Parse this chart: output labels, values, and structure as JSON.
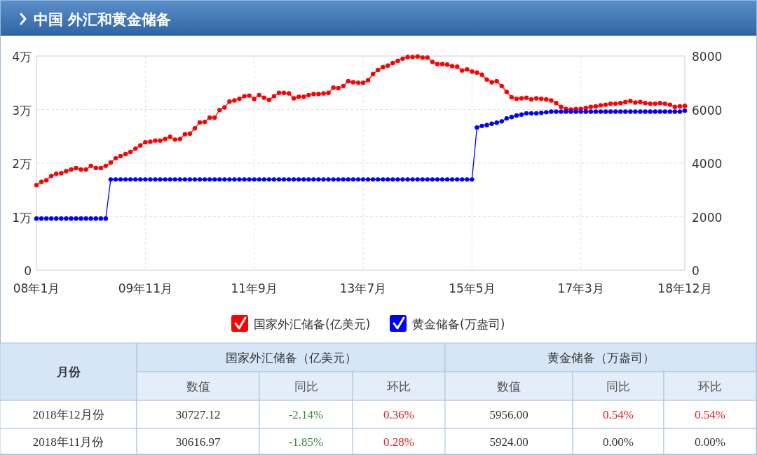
{
  "chart_data": [
    {
      "type": "line",
      "title": "中国 外汇和黄金储备",
      "x": [
        "2008-01",
        "2008-02",
        "2008-03",
        "2008-04",
        "2008-05",
        "2008-06",
        "2008-07",
        "2008-08",
        "2008-09",
        "2008-10",
        "2008-11",
        "2008-12",
        "2009-01",
        "2009-02",
        "2009-03",
        "2009-04",
        "2009-05",
        "2009-06",
        "2009-07",
        "2009-08",
        "2009-09",
        "2009-10",
        "2009-11",
        "2009-12",
        "2010-01",
        "2010-02",
        "2010-03",
        "2010-04",
        "2010-05",
        "2010-06",
        "2010-07",
        "2010-08",
        "2010-09",
        "2010-10",
        "2010-11",
        "2010-12",
        "2011-01",
        "2011-02",
        "2011-03",
        "2011-04",
        "2011-05",
        "2011-06",
        "2011-07",
        "2011-08",
        "2011-09",
        "2011-10",
        "2011-11",
        "2011-12",
        "2012-01",
        "2012-02",
        "2012-03",
        "2012-04",
        "2012-05",
        "2012-06",
        "2012-07",
        "2012-08",
        "2012-09",
        "2012-10",
        "2012-11",
        "2012-12",
        "2013-01",
        "2013-02",
        "2013-03",
        "2013-04",
        "2013-05",
        "2013-06",
        "2013-07",
        "2013-08",
        "2013-09",
        "2013-10",
        "2013-11",
        "2013-12",
        "2014-01",
        "2014-02",
        "2014-03",
        "2014-04",
        "2014-05",
        "2014-06",
        "2014-07",
        "2014-08",
        "2014-09",
        "2014-10",
        "2014-11",
        "2014-12",
        "2015-01",
        "2015-02",
        "2015-03",
        "2015-04",
        "2015-05",
        "2015-06",
        "2015-07",
        "2015-08",
        "2015-09",
        "2015-10",
        "2015-11",
        "2015-12",
        "2016-01",
        "2016-02",
        "2016-03",
        "2016-04",
        "2016-05",
        "2016-06",
        "2016-07",
        "2016-08",
        "2016-09",
        "2016-10",
        "2016-11",
        "2016-12",
        "2017-01",
        "2017-02",
        "2017-03",
        "2017-04",
        "2017-05",
        "2017-06",
        "2017-07",
        "2017-08",
        "2017-09",
        "2017-10",
        "2017-11",
        "2017-12",
        "2018-01",
        "2018-02",
        "2018-03",
        "2018-04",
        "2018-05",
        "2018-06",
        "2018-07",
        "2018-08",
        "2018-09",
        "2018-10",
        "2018-11",
        "2018-12"
      ],
      "xlim": [
        "2008-01",
        "2018-12"
      ],
      "xticks": [
        {
          "value": "2008-01",
          "label": "08年1月"
        },
        {
          "value": "2009-11",
          "label": "09年11月"
        },
        {
          "value": "2011-09",
          "label": "11年9月"
        },
        {
          "value": "2013-07",
          "label": "13年7月"
        },
        {
          "value": "2015-05",
          "label": "15年5月"
        },
        {
          "value": "2017-03",
          "label": "17年3月"
        },
        {
          "value": "2018-12",
          "label": "18年12月"
        }
      ],
      "ylim": [
        0,
        4
      ],
      "yticks": [
        0,
        {
          "value": 1,
          "label": "1万"
        },
        {
          "value": 2,
          "label": "2万"
        },
        {
          "value": 3,
          "label": "3万"
        },
        {
          "value": 4,
          "label": "4万"
        }
      ],
      "y2lim": [
        0,
        8000
      ],
      "y2ticks": [
        0,
        2000,
        4000,
        6000,
        8000
      ],
      "grid": true,
      "legend": "bottom",
      "marker": "circle",
      "series": [
        {
          "name": "国家外汇储备(亿美元)",
          "color": "#ff0000",
          "values": [
            1.59,
            1.65,
            1.68,
            1.76,
            1.8,
            1.81,
            1.85,
            1.88,
            1.91,
            1.88,
            1.88,
            1.95,
            1.91,
            1.91,
            1.95,
            2.01,
            2.09,
            2.13,
            2.17,
            2.21,
            2.27,
            2.33,
            2.39,
            2.4,
            2.42,
            2.42,
            2.45,
            2.49,
            2.44,
            2.45,
            2.54,
            2.55,
            2.65,
            2.76,
            2.77,
            2.85,
            2.85,
            2.99,
            3.04,
            3.15,
            3.17,
            3.2,
            3.25,
            3.26,
            3.2,
            3.27,
            3.22,
            3.18,
            3.25,
            3.31,
            3.31,
            3.3,
            3.21,
            3.24,
            3.24,
            3.27,
            3.29,
            3.29,
            3.3,
            3.31,
            3.41,
            3.4,
            3.44,
            3.53,
            3.51,
            3.5,
            3.5,
            3.55,
            3.66,
            3.74,
            3.79,
            3.82,
            3.87,
            3.91,
            3.95,
            3.98,
            3.98,
            3.99,
            3.97,
            3.97,
            3.89,
            3.85,
            3.85,
            3.84,
            3.81,
            3.8,
            3.73,
            3.75,
            3.71,
            3.69,
            3.65,
            3.56,
            3.51,
            3.53,
            3.44,
            3.33,
            3.23,
            3.2,
            3.21,
            3.22,
            3.19,
            3.21,
            3.2,
            3.19,
            3.17,
            3.12,
            3.05,
            3.01,
            3.0,
            3.01,
            3.01,
            3.03,
            3.05,
            3.06,
            3.08,
            3.09,
            3.11,
            3.11,
            3.12,
            3.14,
            3.16,
            3.13,
            3.14,
            3.12,
            3.11,
            3.11,
            3.12,
            3.11,
            3.09,
            3.05,
            3.06,
            3.07
          ]
        },
        {
          "name": "黄金储备(万盎司)",
          "color": "#0000ff",
          "axis": "y2",
          "values": [
            1930,
            1930,
            1930,
            1930,
            1930,
            1930,
            1930,
            1930,
            1930,
            1930,
            1930,
            1930,
            1930,
            1930,
            1930,
            3390,
            3390,
            3390,
            3390,
            3390,
            3390,
            3390,
            3390,
            3390,
            3390,
            3390,
            3390,
            3390,
            3390,
            3390,
            3390,
            3390,
            3390,
            3390,
            3390,
            3390,
            3390,
            3390,
            3390,
            3390,
            3390,
            3390,
            3390,
            3390,
            3390,
            3390,
            3390,
            3390,
            3390,
            3390,
            3390,
            3390,
            3390,
            3390,
            3390,
            3390,
            3390,
            3390,
            3390,
            3390,
            3390,
            3390,
            3390,
            3390,
            3390,
            3390,
            3390,
            3390,
            3390,
            3390,
            3390,
            3390,
            3390,
            3390,
            3390,
            3390,
            3390,
            3390,
            3390,
            3390,
            3390,
            3390,
            3390,
            3390,
            3390,
            3390,
            3390,
            3390,
            3390,
            5330,
            5390,
            5420,
            5470,
            5510,
            5560,
            5670,
            5720,
            5780,
            5810,
            5860,
            5860,
            5860,
            5880,
            5900,
            5920,
            5920,
            5920,
            5920,
            5920,
            5920,
            5920,
            5920,
            5920,
            5920,
            5920,
            5920,
            5920,
            5920,
            5920,
            5920,
            5920,
            5920,
            5920,
            5920,
            5920,
            5920,
            5920,
            5920,
            5920,
            5920,
            5920,
            5960
          ]
        }
      ]
    },
    {
      "type": "other",
      "annotations": [
        "月份",
        "国家外汇储备（亿美元）",
        "黄金储备（万盎司）",
        "数值",
        "同比",
        "环比",
        "数值",
        "同比",
        "环比",
        "2018年12月份",
        "30727.12",
        "-2.14%",
        "0.36%",
        "5956.00",
        "0.54%",
        "0.54%",
        "2018年11月份",
        "30616.97",
        "-1.85%",
        "0.28%",
        "5924.00",
        "0.00%",
        "0.00%"
      ]
    }
  ]
}
